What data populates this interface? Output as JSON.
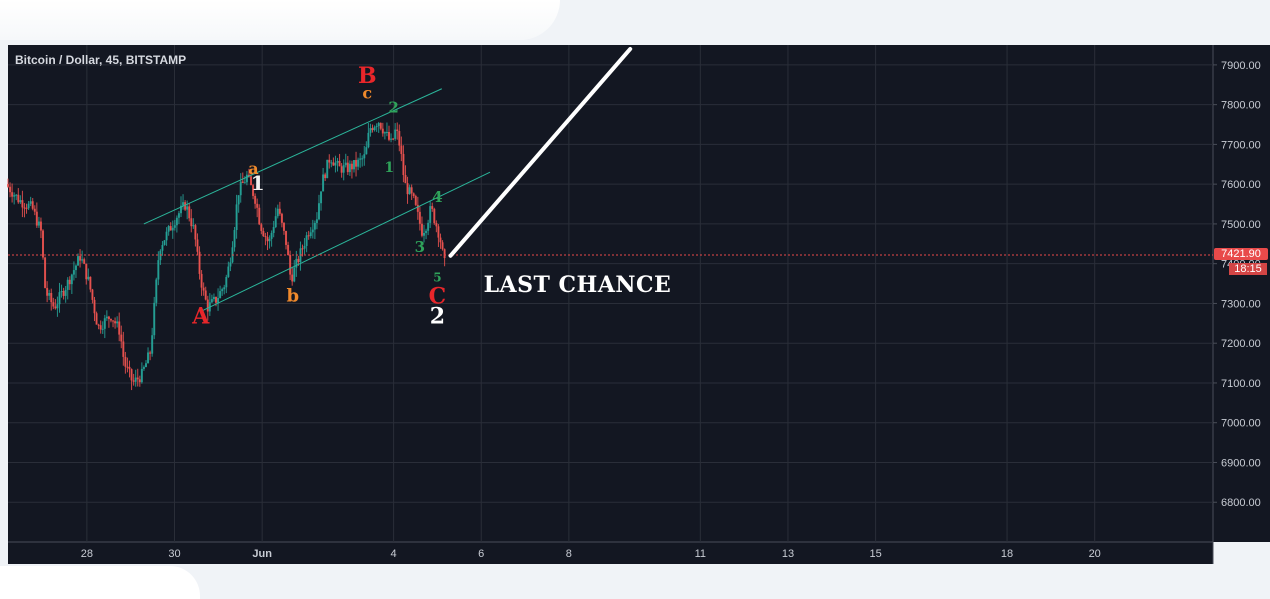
{
  "chart_data": {
    "type": "candlestick",
    "title": "Bitcoin / Dollar, 45, BITSTAMP",
    "ylim": [
      6700,
      7950
    ],
    "y_ticks": [
      "7900.00",
      "7800.00",
      "7700.00",
      "7600.00",
      "7500.00",
      "7400.00",
      "7300.00",
      "7200.00",
      "7100.00",
      "7000.00",
      "6900.00",
      "6800.00"
    ],
    "x_ticks": [
      {
        "label": "28",
        "day": 28
      },
      {
        "label": "30",
        "day": 30
      },
      {
        "label": "Jun",
        "day": 32
      },
      {
        "label": "4",
        "day": 35
      },
      {
        "label": "6",
        "day": 37
      },
      {
        "label": "8",
        "day": 39
      },
      {
        "label": "11",
        "day": 42
      },
      {
        "label": "13",
        "day": 44
      },
      {
        "label": "15",
        "day": 46
      },
      {
        "label": "18",
        "day": 49
      },
      {
        "label": "20",
        "day": 51
      }
    ],
    "x_range_days": [
      26.2,
      53.7
    ],
    "last_price": "7421.90",
    "countdown": "18:15",
    "price_path": [
      [
        26.2,
        7600
      ],
      [
        26.5,
        7560
      ],
      [
        26.8,
        7540
      ],
      [
        27.0,
        7480
      ],
      [
        27.1,
        7330
      ],
      [
        27.3,
        7290
      ],
      [
        27.6,
        7350
      ],
      [
        27.9,
        7420
      ],
      [
        28.1,
        7350
      ],
      [
        28.3,
        7240
      ],
      [
        28.6,
        7270
      ],
      [
        28.8,
        7230
      ],
      [
        28.9,
        7150
      ],
      [
        29.1,
        7100
      ],
      [
        29.3,
        7120
      ],
      [
        29.5,
        7180
      ],
      [
        29.7,
        7440
      ],
      [
        29.9,
        7480
      ],
      [
        30.1,
        7520
      ],
      [
        30.3,
        7550
      ],
      [
        30.5,
        7480
      ],
      [
        30.6,
        7390
      ],
      [
        30.7,
        7330
      ],
      [
        30.8,
        7290
      ],
      [
        31.0,
        7310
      ],
      [
        31.2,
        7350
      ],
      [
        31.3,
        7400
      ],
      [
        31.4,
        7480
      ],
      [
        31.5,
        7580
      ],
      [
        31.7,
        7620
      ],
      [
        31.9,
        7560
      ],
      [
        32.0,
        7500
      ],
      [
        32.2,
        7450
      ],
      [
        32.4,
        7540
      ],
      [
        32.6,
        7450
      ],
      [
        32.7,
        7360
      ],
      [
        32.9,
        7420
      ],
      [
        33.1,
        7480
      ],
      [
        33.3,
        7520
      ],
      [
        33.4,
        7600
      ],
      [
        33.6,
        7670
      ],
      [
        33.8,
        7640
      ],
      [
        34.0,
        7640
      ],
      [
        34.2,
        7650
      ],
      [
        34.4,
        7670
      ],
      [
        34.5,
        7740
      ],
      [
        34.7,
        7760
      ],
      [
        34.9,
        7720
      ],
      [
        35.0,
        7700
      ],
      [
        35.1,
        7740
      ],
      [
        35.2,
        7690
      ],
      [
        35.3,
        7600
      ],
      [
        35.5,
        7560
      ],
      [
        35.7,
        7480
      ],
      [
        35.8,
        7500
      ],
      [
        35.9,
        7540
      ],
      [
        36.1,
        7470
      ],
      [
        36.2,
        7400
      ]
    ],
    "channel_lines": [
      {
        "from": [
          29.3,
          7500
        ],
        "to": [
          36.1,
          7840
        ]
      },
      {
        "from": [
          30.6,
          7280
        ],
        "to": [
          37.2,
          7630
        ]
      }
    ],
    "projection": {
      "from": [
        36.3,
        7420
      ],
      "to": [
        40.4,
        7940
      ]
    },
    "wave_labels": [
      {
        "text": "B",
        "day": 34.4,
        "price": 7855,
        "color": "#e8262a",
        "size": 22
      },
      {
        "text": "c",
        "day": 34.4,
        "price": 7815,
        "color": "#f08a2c",
        "size": 16
      },
      {
        "text": "2",
        "day": 35.0,
        "price": 7780,
        "color": "#2fa35a",
        "size": 15
      },
      {
        "text": "1",
        "day": 31.9,
        "price": 7585,
        "color": "#f2f2f2",
        "size": 20
      },
      {
        "text": "a",
        "day": 31.8,
        "price": 7625,
        "color": "#f08a2c",
        "size": 16
      },
      {
        "text": "1",
        "day": 34.9,
        "price": 7630,
        "color": "#2fa35a",
        "size": 14
      },
      {
        "text": "4",
        "day": 36.0,
        "price": 7555,
        "color": "#2fa35a",
        "size": 15
      },
      {
        "text": "3",
        "day": 35.6,
        "price": 7430,
        "color": "#2fa35a",
        "size": 15
      },
      {
        "text": "b",
        "day": 32.7,
        "price": 7305,
        "color": "#f08a2c",
        "size": 18
      },
      {
        "text": "A",
        "day": 30.6,
        "price": 7250,
        "color": "#e8262a",
        "size": 22
      },
      {
        "text": "5",
        "day": 36.0,
        "price": 7355,
        "color": "#2fa35a",
        "size": 12
      },
      {
        "text": "C",
        "day": 36.0,
        "price": 7300,
        "color": "#e8262a",
        "size": 22
      },
      {
        "text": "2",
        "day": 36.0,
        "price": 7250,
        "color": "#ffffff",
        "size": 22
      }
    ],
    "annotation": "LAST CHANCE"
  }
}
